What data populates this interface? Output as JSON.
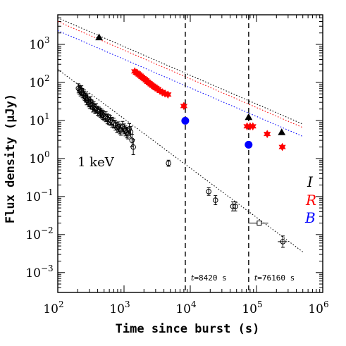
{
  "chart_data": {
    "type": "scatter",
    "title": "",
    "xlabel": "Time since burst (s)",
    "ylabel": "Flux density (μJy)",
    "xscale": "log",
    "yscale": "log",
    "xlim": [
      100,
      1000000
    ],
    "ylim": [
      0.0003,
      6000
    ],
    "x_ticks": [
      {
        "value": 100,
        "base": "10",
        "exp": "2"
      },
      {
        "value": 1000,
        "base": "10",
        "exp": "3"
      },
      {
        "value": 10000,
        "base": "10",
        "exp": "4"
      },
      {
        "value": 100000,
        "base": "10",
        "exp": "5"
      },
      {
        "value": 1000000,
        "base": "10",
        "exp": "6"
      }
    ],
    "y_ticks": [
      {
        "value": 0.001,
        "base": "10",
        "exp": "−3"
      },
      {
        "value": 0.01,
        "base": "10",
        "exp": "−2"
      },
      {
        "value": 0.1,
        "base": "10",
        "exp": "−1"
      },
      {
        "value": 1,
        "base": "10",
        "exp": "0"
      },
      {
        "value": 10,
        "base": "10",
        "exp": "1"
      },
      {
        "value": 100,
        "base": "10",
        "exp": "2"
      },
      {
        "value": 1000,
        "base": "10",
        "exp": "3"
      }
    ],
    "grid": false,
    "series": [
      {
        "name": "I",
        "color": "#000000",
        "marker": "triangle",
        "points": [
          {
            "x": 420,
            "y": 1500,
            "xerr": [
              380,
              460
            ]
          },
          {
            "x": 76000,
            "y": 12
          },
          {
            "x": 240000,
            "y": 4.8
          }
        ]
      },
      {
        "name": "R",
        "color": "#ff0000",
        "marker": "star",
        "points": [
          {
            "x": 1450,
            "y": 195
          },
          {
            "x": 1530,
            "y": 180
          },
          {
            "x": 1600,
            "y": 172
          },
          {
            "x": 1680,
            "y": 162
          },
          {
            "x": 1760,
            "y": 150
          },
          {
            "x": 1850,
            "y": 140
          },
          {
            "x": 1950,
            "y": 130
          },
          {
            "x": 2050,
            "y": 122
          },
          {
            "x": 2150,
            "y": 113
          },
          {
            "x": 2270,
            "y": 104
          },
          {
            "x": 2400,
            "y": 96
          },
          {
            "x": 2550,
            "y": 89
          },
          {
            "x": 2700,
            "y": 82
          },
          {
            "x": 2870,
            "y": 76
          },
          {
            "x": 3050,
            "y": 71
          },
          {
            "x": 3250,
            "y": 66
          },
          {
            "x": 3500,
            "y": 60
          },
          {
            "x": 3800,
            "y": 55
          },
          {
            "x": 4150,
            "y": 51
          },
          {
            "x": 4600,
            "y": 48
          },
          {
            "x": 8000,
            "y": 24
          },
          {
            "x": 72000,
            "y": 7
          },
          {
            "x": 80000,
            "y": 7
          },
          {
            "x": 88000,
            "y": 7
          },
          {
            "x": 145000,
            "y": 4.4
          },
          {
            "x": 245000,
            "y": 2
          }
        ]
      },
      {
        "name": "B",
        "color": "#0000ff",
        "marker": "circle",
        "points": [
          {
            "x": 8400,
            "y": 9.8
          },
          {
            "x": 76000,
            "y": 2.3
          }
        ]
      },
      {
        "name": "1 keV",
        "color": "#000000",
        "marker": "open-circle",
        "points": [
          {
            "x": 205,
            "y": 70,
            "yerr": 0.12
          },
          {
            "x": 212,
            "y": 64,
            "yerr": 0.12
          },
          {
            "x": 220,
            "y": 58,
            "yerr": 0.12
          },
          {
            "x": 228,
            "y": 62,
            "yerr": 0.12
          },
          {
            "x": 236,
            "y": 52,
            "yerr": 0.12
          },
          {
            "x": 245,
            "y": 48,
            "yerr": 0.12
          },
          {
            "x": 254,
            "y": 44,
            "yerr": 0.12
          },
          {
            "x": 263,
            "y": 40,
            "yerr": 0.12
          },
          {
            "x": 272,
            "y": 34,
            "yerr": 0.12
          },
          {
            "x": 282,
            "y": 38,
            "yerr": 0.12
          },
          {
            "x": 292,
            "y": 30,
            "yerr": 0.12
          },
          {
            "x": 303,
            "y": 27,
            "yerr": 0.12
          },
          {
            "x": 314,
            "y": 32,
            "yerr": 0.12
          },
          {
            "x": 326,
            "y": 26,
            "yerr": 0.12
          },
          {
            "x": 338,
            "y": 22,
            "yerr": 0.12
          },
          {
            "x": 350,
            "y": 24,
            "yerr": 0.12
          },
          {
            "x": 365,
            "y": 20,
            "yerr": 0.12
          },
          {
            "x": 380,
            "y": 21,
            "yerr": 0.12
          },
          {
            "x": 400,
            "y": 18,
            "yerr": 0.12
          },
          {
            "x": 420,
            "y": 17,
            "yerr": 0.12
          },
          {
            "x": 440,
            "y": 16,
            "yerr": 0.12
          },
          {
            "x": 460,
            "y": 15,
            "yerr": 0.12
          },
          {
            "x": 480,
            "y": 14,
            "yerr": 0.12
          },
          {
            "x": 500,
            "y": 13,
            "yerr": 0.12
          },
          {
            "x": 530,
            "y": 12.5,
            "yerr": 0.13
          },
          {
            "x": 560,
            "y": 11,
            "yerr": 0.13
          },
          {
            "x": 590,
            "y": 10.5,
            "yerr": 0.13
          },
          {
            "x": 620,
            "y": 10,
            "yerr": 0.13
          },
          {
            "x": 660,
            "y": 9,
            "yerr": 0.13
          },
          {
            "x": 700,
            "y": 8.5,
            "yerr": 0.13
          },
          {
            "x": 740,
            "y": 7.5,
            "yerr": 0.13
          },
          {
            "x": 780,
            "y": 6.5,
            "yerr": 0.13
          },
          {
            "x": 820,
            "y": 6.8,
            "yerr": 0.13
          },
          {
            "x": 860,
            "y": 6,
            "yerr": 0.13
          },
          {
            "x": 900,
            "y": 5.5,
            "yerr": 0.13
          },
          {
            "x": 950,
            "y": 7,
            "yerr": 0.13
          },
          {
            "x": 1000,
            "y": 6,
            "yerr": 0.13
          },
          {
            "x": 1050,
            "y": 5.3,
            "yerr": 0.13
          },
          {
            "x": 1100,
            "y": 4.8,
            "yerr": 0.14
          },
          {
            "x": 1150,
            "y": 4.5,
            "yerr": 0.14
          },
          {
            "x": 1200,
            "y": 6,
            "yerr": 0.14
          },
          {
            "x": 1260,
            "y": 5,
            "yerr": 0.14
          },
          {
            "x": 1320,
            "y": 3,
            "yerr": 0.16
          },
          {
            "x": 1380,
            "y": 2,
            "yerr": 0.2
          },
          {
            "x": 4700,
            "y": 0.75,
            "yerr": 0.08
          },
          {
            "x": 19000,
            "y": 0.135,
            "yerr": 0.1
          },
          {
            "x": 24000,
            "y": 0.08,
            "yerr": 0.12
          },
          {
            "x": 44000,
            "y": 0.055,
            "yerr": 0.12
          },
          {
            "x": 48000,
            "y": 0.055,
            "yerr": 0.12
          },
          {
            "x": 110000,
            "y": 0.02,
            "xerr": [
              75000,
              150000
            ]
          },
          {
            "x": 250000,
            "y": 0.0065,
            "yerr": 0.15,
            "xerr": [
              210000,
              290000
            ]
          }
        ]
      }
    ],
    "model_lines": [
      {
        "name": "I",
        "color": "#000000",
        "x": [
          100,
          500000
        ],
        "y": [
          5000,
          8
        ]
      },
      {
        "name": "R",
        "color": "#ff0000",
        "x": [
          100,
          500000
        ],
        "y": [
          4000,
          6.5
        ]
      },
      {
        "name": "B",
        "color": "#0000ff",
        "x": [
          100,
          500000
        ],
        "y": [
          2300,
          3.8
        ]
      },
      {
        "name": "1 keV",
        "color": "#000000",
        "x": [
          100,
          500000
        ],
        "y": [
          220,
          0.0035
        ]
      }
    ],
    "vlines": [
      {
        "x": 8420,
        "label": "t=8420 s",
        "t": "t",
        "value": "=8420 s"
      },
      {
        "x": 76160,
        "label": "t=76160 s",
        "t": "t",
        "value": "=76160 s"
      }
    ],
    "annotations": {
      "xray": "1 keV",
      "band_I": "I",
      "band_R": "R",
      "band_B": "B"
    }
  }
}
